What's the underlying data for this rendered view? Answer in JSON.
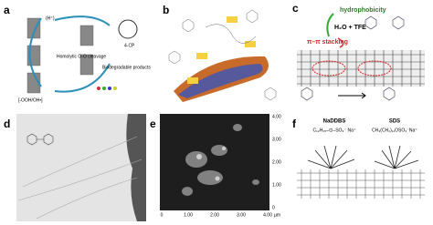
{
  "panels": {
    "a": {
      "label": "a",
      "texts": [
        "(H⁺)",
        "Homolytic O-O cleavage",
        "Biodegradable products",
        "4-CP",
        "[-OOH/OH•]"
      ]
    },
    "b": {
      "label": "b"
    },
    "c": {
      "label": "c",
      "texts": [
        "hydrophobicity",
        "H₂O + TFE",
        "π–π stacking"
      ]
    },
    "d": {
      "label": "d"
    },
    "e": {
      "label": "e",
      "yticks": [
        "4.00",
        "3.00",
        "2.00",
        "1.00",
        "0"
      ],
      "xticks": [
        "0",
        "1.00",
        "2.00",
        "3.00",
        "4.00"
      ],
      "unit": "µm"
    },
    "f": {
      "label": "f",
      "texts": [
        "NaDDBS",
        "SDS",
        "C₁₂H₂₅–⌬–SO₃⁻ Na⁺",
        "CH₃(CH₂)₁₁OSO₃⁻Na⁺"
      ]
    }
  }
}
